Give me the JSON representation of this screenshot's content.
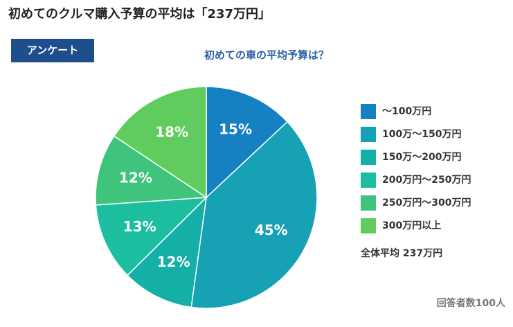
{
  "header": {
    "title": "初めてのクルマ購入予算の平均は「237万円」",
    "badge": "アンケート"
  },
  "chart_data": {
    "type": "pie",
    "title": "初めての車の平均予算は？",
    "categories": [
      "〜100万円",
      "100万〜150万円",
      "150万〜200万円",
      "200万円〜250万円",
      "250万円〜300万円",
      "300万円以上"
    ],
    "values": [
      15,
      45,
      12,
      13,
      12,
      18
    ],
    "value_labels": [
      "15%",
      "45%",
      "12%",
      "13%",
      "12%",
      "18%"
    ],
    "colors": [
      "#1580c2",
      "#17a1b5",
      "#14afa6",
      "#1cbe9f",
      "#3ec47c",
      "#60cc5e"
    ],
    "annotation": "全体平均 237万円",
    "footnote": "回答者数100人"
  }
}
